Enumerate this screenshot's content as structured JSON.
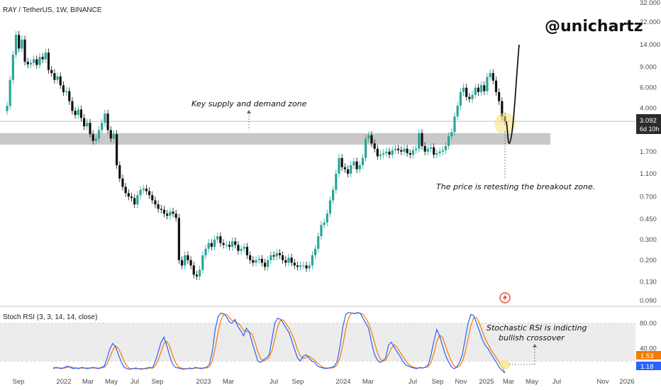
{
  "header": {
    "symbol": "RAY / TetherUS, 1W, BINANCE",
    "brand": "@unichartz"
  },
  "colors": {
    "up": "#26a69a",
    "down": "#111111",
    "zone": "#c9c9c9",
    "k_line": "#2962ff",
    "d_line": "#f57c00",
    "price_tag": "#2b2b2b",
    "k_tag": "#2962ff",
    "d_tag": "#f57c00",
    "marker": "#f5e27a"
  },
  "annotations": {
    "zone_label": "Key supply and demand zone",
    "retest_label": "The price is retesting the breakout zone.",
    "rsi_label_line1": "Stochastic RSI is indicting",
    "rsi_label_line2": "bullish crossover"
  },
  "price_tag": {
    "value": "3.092",
    "countdown": "6d 10h"
  },
  "chart_data": [
    {
      "type": "candlestick",
      "title": "RAY / TetherUS, 1W, BINANCE",
      "y_scale": "log",
      "ylim": [
        0.085,
        32
      ],
      "y_ticks": [
        "32.000",
        "22.000",
        "14.000",
        "9.000",
        "6.000",
        "4.000",
        "1.700",
        "1.100",
        "0.700",
        "0.450",
        "0.300",
        "0.200",
        "0.130",
        "0.090"
      ],
      "x_ticks": [
        "Sep",
        "2022",
        "Mar",
        "May",
        "Jul",
        "Sep",
        "2023",
        "Mar",
        "Jul",
        "Sep",
        "2024",
        "Mar",
        "Jul",
        "Sep",
        "Nov",
        "2025",
        "Mar",
        "May",
        "Jul",
        "Nov",
        "2026"
      ],
      "zone": [
        1.95,
        2.45
      ],
      "current_price": 3.092,
      "projection": [
        3.09,
        2.0,
        14.0
      ],
      "closes": [
        4.2,
        7.0,
        11.5,
        17.0,
        13.0,
        15.5,
        10.0,
        9.5,
        9.8,
        10.5,
        9.4,
        11.0,
        10.5,
        12.0,
        8.5,
        8.0,
        7.0,
        7.5,
        6.3,
        5.5,
        5.6,
        4.6,
        3.8,
        3.5,
        3.9,
        3.3,
        2.8,
        3.0,
        2.4,
        2.1,
        2.2,
        2.6,
        3.0,
        3.6,
        2.6,
        2.2,
        2.4,
        1.3,
        1.0,
        0.85,
        0.75,
        0.7,
        0.68,
        0.6,
        0.72,
        0.8,
        0.82,
        0.78,
        0.72,
        0.65,
        0.6,
        0.55,
        0.54,
        0.5,
        0.48,
        0.52,
        0.5,
        0.46,
        0.2,
        0.18,
        0.22,
        0.2,
        0.18,
        0.15,
        0.145,
        0.165,
        0.22,
        0.25,
        0.28,
        0.26,
        0.3,
        0.32,
        0.28,
        0.27,
        0.27,
        0.26,
        0.29,
        0.27,
        0.24,
        0.25,
        0.26,
        0.22,
        0.2,
        0.19,
        0.2,
        0.205,
        0.19,
        0.175,
        0.2,
        0.22,
        0.215,
        0.23,
        0.22,
        0.2,
        0.19,
        0.21,
        0.19,
        0.18,
        0.175,
        0.18,
        0.18,
        0.17,
        0.18,
        0.22,
        0.25,
        0.32,
        0.4,
        0.42,
        0.5,
        0.65,
        0.8,
        1.1,
        1.5,
        1.25,
        1.2,
        1.1,
        1.3,
        1.4,
        1.2,
        1.3,
        1.5,
        2.2,
        2.35,
        2.0,
        1.8,
        1.55,
        1.6,
        1.65,
        1.7,
        1.6,
        1.75,
        1.8,
        1.75,
        1.7,
        1.8,
        1.65,
        1.6,
        1.75,
        1.8,
        2.45,
        1.9,
        1.7,
        1.8,
        1.85,
        1.6,
        1.65,
        1.7,
        1.75,
        1.9,
        2.3,
        2.5,
        3.4,
        4.2,
        5.5,
        6.0,
        5.0,
        4.8,
        5.2,
        6.0,
        5.5,
        6.3,
        5.6,
        7.4,
        8.0,
        6.9,
        5.5,
        4.6,
        3.4,
        3.092
      ],
      "series": [
        {
          "name": "Price",
          "values": "closes"
        }
      ]
    },
    {
      "type": "line",
      "title": "Stoch RSI (3, 3, 14, 14, close)",
      "ylim": [
        0,
        100
      ],
      "y_ticks": [
        "80.00",
        "40.00"
      ],
      "band": [
        20,
        80
      ],
      "last_values": {
        "k": "1.18",
        "d": "1.53"
      },
      "series": [
        {
          "name": "K",
          "values": [
            8,
            10,
            9,
            8,
            10,
            12,
            10,
            8,
            9,
            8,
            10,
            9,
            8,
            9,
            10,
            9,
            8,
            10,
            12,
            25,
            40,
            48,
            42,
            30,
            18,
            10,
            8,
            7,
            8,
            9,
            8,
            7,
            8,
            9,
            10,
            9,
            20,
            35,
            50,
            58,
            44,
            28,
            15,
            10,
            9,
            8,
            7,
            8,
            9,
            8,
            10,
            9,
            8,
            9,
            10,
            15,
            35,
            70,
            90,
            96,
            95,
            90,
            82,
            80,
            86,
            75,
            68,
            60,
            72,
            66,
            50,
            35,
            20,
            18,
            22,
            25,
            30,
            55,
            80,
            88,
            86,
            80,
            72,
            65,
            52,
            38,
            25,
            20,
            28,
            30,
            25,
            20,
            18,
            12,
            10,
            9,
            8,
            9,
            10,
            12,
            20,
            45,
            75,
            94,
            97,
            96,
            95,
            97,
            96,
            88,
            80,
            72,
            50,
            32,
            22,
            18,
            20,
            25,
            45,
            50,
            42,
            35,
            28,
            20,
            14,
            12,
            10,
            9,
            8,
            10,
            9,
            10,
            14,
            30,
            52,
            70,
            60,
            45,
            30,
            20,
            12,
            8,
            10,
            18,
            30,
            55,
            80,
            94,
            92,
            80,
            68,
            55,
            45,
            40,
            32,
            25,
            18,
            10,
            5,
            1.18
          ]
        },
        {
          "name": "D",
          "values": [
            10,
            9,
            9,
            9,
            9,
            10,
            11,
            10,
            9,
            9,
            9,
            9,
            9,
            9,
            9,
            9,
            9,
            9,
            10,
            16,
            26,
            38,
            44,
            40,
            30,
            19,
            12,
            8,
            8,
            8,
            8,
            8,
            8,
            8,
            9,
            9,
            13,
            22,
            35,
            48,
            51,
            43,
            29,
            18,
            11,
            9,
            8,
            8,
            8,
            8,
            9,
            9,
            9,
            9,
            9,
            11,
            20,
            40,
            65,
            85,
            94,
            94,
            89,
            84,
            83,
            80,
            76,
            68,
            67,
            66,
            63,
            50,
            35,
            24,
            20,
            22,
            26,
            37,
            55,
            74,
            85,
            85,
            79,
            72,
            63,
            52,
            38,
            28,
            24,
            26,
            28,
            25,
            21,
            17,
            13,
            10,
            9,
            9,
            9,
            10,
            14,
            26,
            47,
            71,
            89,
            96,
            96,
            96,
            96,
            94,
            88,
            80,
            67,
            51,
            35,
            24,
            20,
            21,
            30,
            40,
            46,
            42,
            35,
            28,
            21,
            15,
            12,
            10,
            9,
            9,
            9,
            10,
            11,
            18,
            32,
            51,
            61,
            58,
            45,
            32,
            21,
            13,
            10,
            12,
            19,
            34,
            55,
            76,
            89,
            89,
            80,
            68,
            56,
            47,
            39,
            32,
            25,
            18,
            11,
            1.53
          ]
        }
      ]
    }
  ]
}
